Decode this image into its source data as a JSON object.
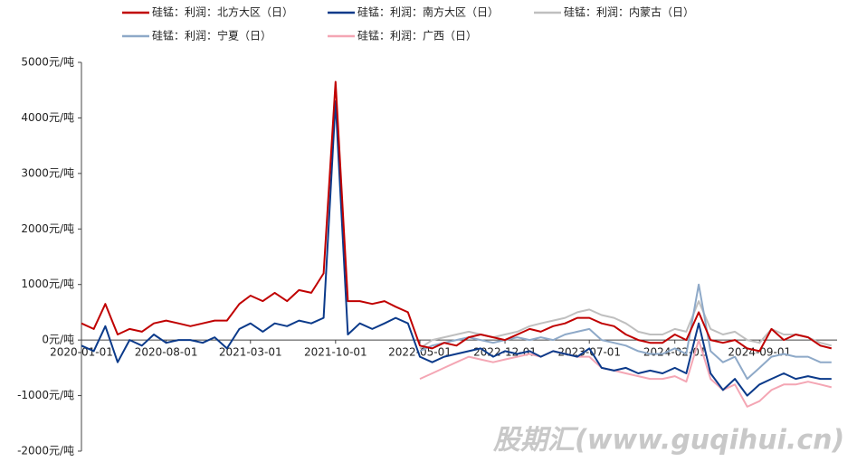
{
  "chart_data": {
    "type": "line",
    "watermark": "股期汇(www.guqihui.cn)",
    "x": [
      "2020-01-01",
      "2020-02-01",
      "2020-03-01",
      "2020-04-01",
      "2020-05-01",
      "2020-06-01",
      "2020-07-01",
      "2020-08-01",
      "2020-09-01",
      "2020-10-01",
      "2020-11-01",
      "2020-12-01",
      "2021-01-01",
      "2021-02-01",
      "2021-03-01",
      "2021-04-01",
      "2021-05-01",
      "2021-06-01",
      "2021-07-01",
      "2021-08-01",
      "2021-09-01",
      "2021-10-01",
      "2021-11-01",
      "2021-12-01",
      "2022-01-01",
      "2022-02-01",
      "2022-03-01",
      "2022-04-01",
      "2022-05-01",
      "2022-06-01",
      "2022-07-01",
      "2022-08-01",
      "2022-09-01",
      "2022-10-01",
      "2022-11-01",
      "2022-12-01",
      "2023-01-01",
      "2023-02-01",
      "2023-03-01",
      "2023-04-01",
      "2023-05-01",
      "2023-06-01",
      "2023-07-01",
      "2023-08-01",
      "2023-09-01",
      "2023-10-01",
      "2023-11-01",
      "2023-12-01",
      "2024-01-01",
      "2024-02-01",
      "2024-03-01",
      "2024-04-01",
      "2024-05-01",
      "2024-06-01",
      "2024-07-01",
      "2024-08-01",
      "2024-09-01",
      "2024-10-01",
      "2024-11-01",
      "2024-12-01",
      "2025-01-01",
      "2025-02-01",
      "2025-03-01"
    ],
    "series": [
      {
        "name": "硅锰：利润：北方大区（日）",
        "color": "#c00000",
        "values": [
          300,
          200,
          650,
          100,
          200,
          150,
          300,
          350,
          300,
          250,
          300,
          350,
          350,
          650,
          800,
          700,
          850,
          700,
          900,
          850,
          1200,
          4650,
          700,
          700,
          650,
          700,
          600,
          500,
          -100,
          -150,
          -50,
          -100,
          50,
          100,
          50,
          0,
          100,
          200,
          150,
          250,
          300,
          400,
          400,
          300,
          250,
          100,
          0,
          -50,
          -50,
          100,
          0,
          500,
          0,
          -50,
          0,
          -150,
          -200,
          200,
          0,
          100,
          50,
          -100,
          -150
        ]
      },
      {
        "name": "硅锰：利润：南方大区（日）",
        "color": "#0b3a8a",
        "values": [
          -100,
          -200,
          250,
          -400,
          0,
          -100,
          100,
          -50,
          0,
          0,
          -50,
          50,
          -150,
          200,
          300,
          150,
          300,
          250,
          350,
          300,
          400,
          4300,
          100,
          300,
          200,
          300,
          400,
          300,
          -300,
          -400,
          -300,
          -250,
          -200,
          -150,
          -300,
          -200,
          -250,
          -200,
          -300,
          -200,
          -250,
          -300,
          -150,
          -500,
          -550,
          -500,
          -600,
          -550,
          -600,
          -500,
          -600,
          300,
          -600,
          -900,
          -700,
          -1000,
          -800,
          -700,
          -600,
          -700,
          -650,
          -700,
          -700
        ]
      },
      {
        "name": "硅锰：利润：内蒙古（日）",
        "color": "#bfbfbf",
        "values": [
          null,
          null,
          null,
          null,
          null,
          null,
          null,
          null,
          null,
          null,
          null,
          null,
          null,
          null,
          null,
          null,
          null,
          null,
          null,
          null,
          null,
          null,
          null,
          null,
          null,
          null,
          null,
          null,
          -150,
          0,
          50,
          100,
          150,
          100,
          50,
          100,
          150,
          250,
          300,
          350,
          400,
          500,
          550,
          450,
          400,
          300,
          150,
          100,
          100,
          200,
          150,
          700,
          200,
          100,
          150,
          0,
          -50,
          200,
          100,
          100,
          50,
          -50,
          -100
        ]
      },
      {
        "name": "硅锰：利润：宁夏（日）",
        "color": "#8ea9c8",
        "values": [
          null,
          null,
          null,
          null,
          null,
          null,
          null,
          null,
          null,
          null,
          null,
          null,
          null,
          null,
          null,
          null,
          null,
          null,
          null,
          null,
          null,
          null,
          null,
          null,
          null,
          null,
          null,
          null,
          -200,
          -100,
          -50,
          0,
          50,
          0,
          -50,
          0,
          50,
          0,
          50,
          0,
          100,
          150,
          200,
          0,
          -50,
          -100,
          -200,
          -250,
          -250,
          -150,
          -250,
          1000,
          -200,
          -400,
          -300,
          -700,
          -500,
          -300,
          -250,
          -300,
          -300,
          -400,
          -400
        ]
      },
      {
        "name": "硅锰：利润：广西（日）",
        "color": "#f4a6b4",
        "values": [
          null,
          null,
          null,
          null,
          null,
          null,
          null,
          null,
          null,
          null,
          null,
          null,
          null,
          null,
          null,
          null,
          null,
          null,
          null,
          null,
          null,
          null,
          null,
          null,
          null,
          null,
          null,
          null,
          -700,
          -600,
          -500,
          -400,
          -300,
          -350,
          -400,
          -350,
          -300,
          -250,
          -300,
          -200,
          -250,
          -300,
          -300,
          -500,
          -550,
          -600,
          -650,
          -700,
          -700,
          -650,
          -750,
          0,
          -700,
          -900,
          -800,
          -1200,
          -1100,
          -900,
          -800,
          -800,
          -750,
          -800,
          -850
        ]
      }
    ],
    "xlim": [
      "2020-01-01",
      "2025-03-15"
    ],
    "xticks": [
      "2020-01-01",
      "2020-08-01",
      "2021-03-01",
      "2021-10-01",
      "2022-05-01",
      "2022-12-01",
      "2023-07-01",
      "2024-02-01",
      "2024-09-01"
    ],
    "ylim": [
      -2000,
      5000
    ],
    "yticks": [
      {
        "value": -2000,
        "label": "-2000元/吨"
      },
      {
        "value": -1000,
        "label": "-1000元/吨"
      },
      {
        "value": 0,
        "label": "0元/吨"
      },
      {
        "value": 1000,
        "label": "1000元/吨"
      },
      {
        "value": 2000,
        "label": "2000元/吨"
      },
      {
        "value": 3000,
        "label": "3000元/吨"
      },
      {
        "value": 4000,
        "label": "4000元/吨"
      },
      {
        "value": 5000,
        "label": "5000元/吨"
      }
    ]
  }
}
